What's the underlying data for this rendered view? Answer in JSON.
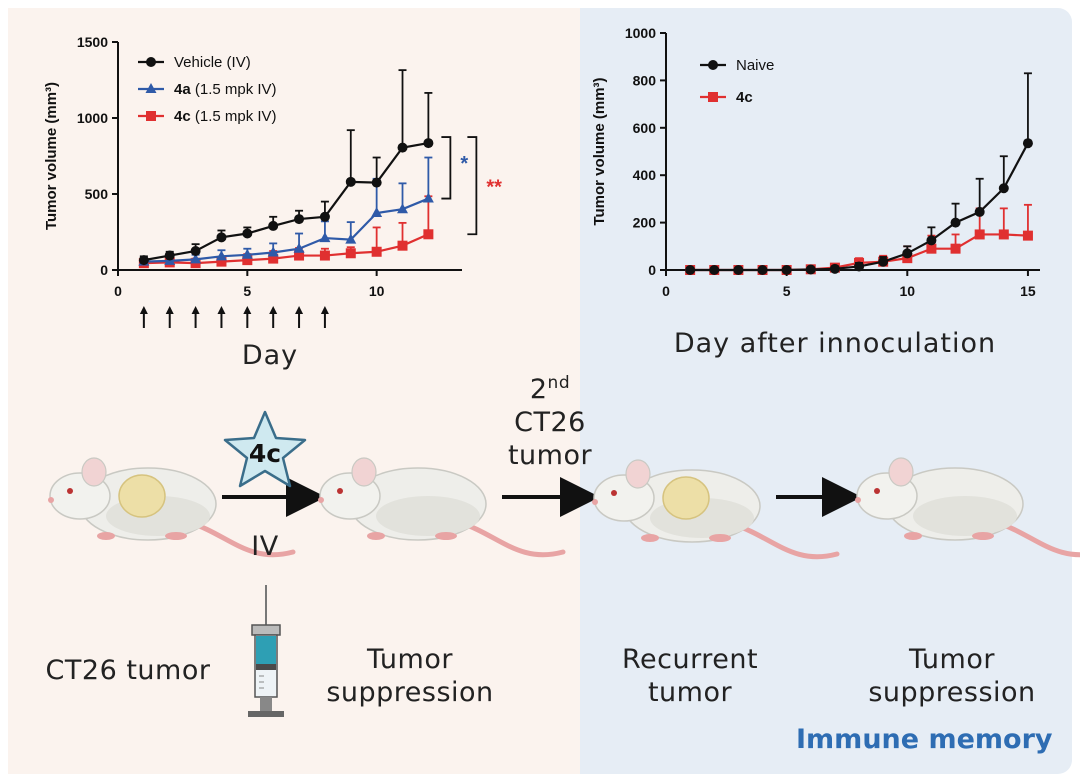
{
  "colors": {
    "left_panel_bg": "#fbf3ee",
    "right_panel_bg": "#e6edf5",
    "black_series": "#111111",
    "blue_series": "#2f5aa8",
    "red_series": "#e03030",
    "memory_text": "#2e6db3"
  },
  "chart_data": [
    {
      "type": "line",
      "ylabel": "Tumor volume (mm³)",
      "xlabel": "Day",
      "xlim": [
        0,
        13.3
      ],
      "ylim": [
        0,
        1500
      ],
      "x_ticks": [
        0,
        5,
        10
      ],
      "y_ticks": [
        0,
        500,
        1000,
        1500
      ],
      "dosing_days": [
        1,
        2,
        3,
        4,
        5,
        6,
        7,
        8
      ],
      "series": [
        {
          "name": "Vehicle (IV)",
          "bold_part": "",
          "rest_part": "Vehicle (IV)",
          "color": "#111111",
          "marker": "circle",
          "x": [
            1,
            2,
            3,
            4,
            5,
            6,
            7,
            8,
            9,
            10,
            11,
            12
          ],
          "y": [
            65,
            95,
            125,
            215,
            240,
            290,
            335,
            350,
            580,
            575,
            805,
            835
          ],
          "err": [
            25,
            25,
            45,
            45,
            40,
            60,
            55,
            100,
            340,
            165,
            510,
            330
          ]
        },
        {
          "name": "4a (1.5 mpk IV)",
          "bold_part": "4a",
          "rest_part": " (1.5 mpk IV)",
          "color": "#2f5aa8",
          "marker": "triangle",
          "x": [
            1,
            2,
            3,
            4,
            5,
            6,
            7,
            8,
            9,
            10,
            11,
            12
          ],
          "y": [
            55,
            60,
            70,
            90,
            100,
            115,
            140,
            210,
            200,
            375,
            400,
            470
          ],
          "err": [
            20,
            25,
            30,
            40,
            40,
            60,
            100,
            110,
            115,
            225,
            170,
            270
          ]
        },
        {
          "name": "4c (1.5 mpk IV)",
          "bold_part": "4c",
          "rest_part": " (1.5 mpk IV)",
          "color": "#e03030",
          "marker": "square",
          "x": [
            1,
            2,
            3,
            4,
            5,
            6,
            7,
            8,
            9,
            10,
            11,
            12
          ],
          "y": [
            45,
            50,
            45,
            55,
            65,
            75,
            95,
            95,
            110,
            120,
            160,
            235
          ],
          "err": [
            15,
            20,
            30,
            30,
            40,
            50,
            50,
            45,
            40,
            160,
            150,
            250
          ]
        }
      ],
      "significance": [
        {
          "label": "*",
          "color": "#2f5aa8",
          "compares": [
            "4a (1.5 mpk IV)",
            "Vehicle (IV)"
          ]
        },
        {
          "label": "**",
          "color": "#e03030",
          "compares": [
            "4c (1.5 mpk IV)",
            "Vehicle (IV)"
          ]
        }
      ]
    },
    {
      "type": "line",
      "ylabel": "Tumor volume (mm³)",
      "xlabel": "Day after innoculation",
      "xlim": [
        0,
        15.5
      ],
      "ylim": [
        0,
        1000
      ],
      "x_ticks": [
        0,
        5,
        10,
        15
      ],
      "y_ticks": [
        0,
        200,
        400,
        600,
        800,
        1000
      ],
      "series": [
        {
          "name": "Naive",
          "bold_part": "",
          "rest_part": "Naive",
          "color": "#111111",
          "marker": "circle",
          "x": [
            1,
            2,
            3,
            4,
            5,
            6,
            7,
            8,
            9,
            10,
            11,
            12,
            13,
            14,
            15
          ],
          "y": [
            0,
            0,
            0,
            0,
            0,
            2,
            5,
            15,
            35,
            70,
            125,
            200,
            245,
            345,
            535
          ],
          "err": [
            0,
            0,
            0,
            0,
            0,
            5,
            10,
            15,
            20,
            30,
            55,
            80,
            140,
            135,
            295
          ]
        },
        {
          "name": "4c",
          "bold_part": "4c",
          "rest_part": "",
          "color": "#e03030",
          "marker": "square",
          "x": [
            1,
            2,
            3,
            4,
            5,
            6,
            7,
            8,
            9,
            10,
            11,
            12,
            13,
            14,
            15
          ],
          "y": [
            0,
            0,
            0,
            0,
            0,
            3,
            10,
            30,
            35,
            50,
            90,
            90,
            150,
            150,
            145
          ],
          "err": [
            0,
            0,
            0,
            0,
            0,
            5,
            15,
            20,
            25,
            50,
            55,
            60,
            110,
            110,
            130
          ]
        }
      ]
    }
  ],
  "workflow": {
    "star_label": "4c",
    "route_label": "IV",
    "rechallenge_sup": "nd",
    "rechallenge_num": "2",
    "rechallenge_line2": "CT26",
    "rechallenge_line3": "tumor",
    "caption_ct26": "CT26 tumor",
    "caption_suppression_1_line1": "Tumor",
    "caption_suppression_1_line2": "suppression",
    "caption_recurrent_line1": "Recurrent",
    "caption_recurrent_line2": "tumor",
    "caption_suppression_2_line1": "Tumor",
    "caption_suppression_2_line2": "suppression",
    "immune_memory": "Immune memory"
  },
  "mice": [
    {
      "name": "mouse-with-tumor",
      "tumor": true
    },
    {
      "name": "mouse-treated",
      "tumor": false
    },
    {
      "name": "mouse-recurrent-tumor",
      "tumor": true
    },
    {
      "name": "mouse-final",
      "tumor": false
    }
  ]
}
